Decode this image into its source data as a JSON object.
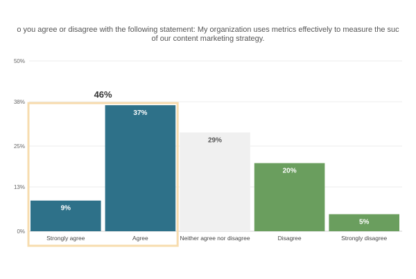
{
  "chart_data": {
    "type": "bar",
    "title_lines": [
      "o you agree or disagree with the following statement: My organization uses metrics effectively to measure the suc",
      "of our content marketing strategy."
    ],
    "categories": [
      "Strongly agree",
      "Agree",
      "Neither agree nor disagree",
      "Disagree",
      "Strongly disagree"
    ],
    "values": [
      9,
      37,
      29,
      20,
      5
    ],
    "value_labels": [
      "9%",
      "37%",
      "29%",
      "20%",
      "5%"
    ],
    "bar_colors": [
      "#2e7189",
      "#2e7189",
      "#f0f0f0",
      "#6a9e5e",
      "#6a9e5e"
    ],
    "label_colors": [
      "#ffffff",
      "#ffffff",
      "#555555",
      "#ffffff",
      "#ffffff"
    ],
    "y_ticks": [
      0,
      13,
      25,
      38,
      50
    ],
    "y_tick_labels": [
      "0%",
      "13%",
      "25%",
      "38%",
      "50%"
    ],
    "ylim": [
      0,
      50
    ],
    "grid": true,
    "highlight": {
      "categories": [
        "Strongly agree",
        "Agree"
      ],
      "label": "46%",
      "color": "#f7dcae"
    }
  }
}
